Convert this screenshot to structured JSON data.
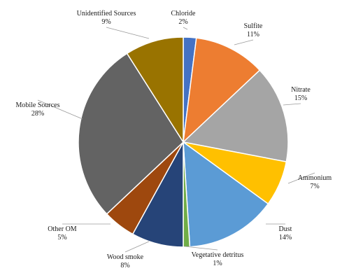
{
  "chart_data": {
    "type": "pie",
    "title": "",
    "start_angle_deg": 0,
    "direction": "clockwise",
    "legend": "none",
    "slices": [
      {
        "label": "Chloride",
        "value": 2,
        "value_label": "2%",
        "color": "#4472C4"
      },
      {
        "label": "Sulfite",
        "value": 11,
        "value_label": "11%",
        "color": "#ED7D31"
      },
      {
        "label": "Nitrate",
        "value": 15,
        "value_label": "15%",
        "color": "#A5A5A5"
      },
      {
        "label": "Ammonium",
        "value": 7,
        "value_label": "7%",
        "color": "#FFC000"
      },
      {
        "label": "Dust",
        "value": 14,
        "value_label": "14%",
        "color": "#5B9BD5"
      },
      {
        "label": "Vegetative detritus",
        "value": 1,
        "value_label": "1%",
        "color": "#70AD47"
      },
      {
        "label": "Wood smoke",
        "value": 8,
        "value_label": "8%",
        "color": "#264478"
      },
      {
        "label": "Other OM",
        "value": 5,
        "value_label": "5%",
        "color": "#9E480E"
      },
      {
        "label": "Mobile Sources",
        "value": 28,
        "value_label": "28%",
        "color": "#636363"
      },
      {
        "label": "Unidentified Sources",
        "value": 9,
        "value_label": "9%",
        "color": "#997300"
      }
    ]
  }
}
